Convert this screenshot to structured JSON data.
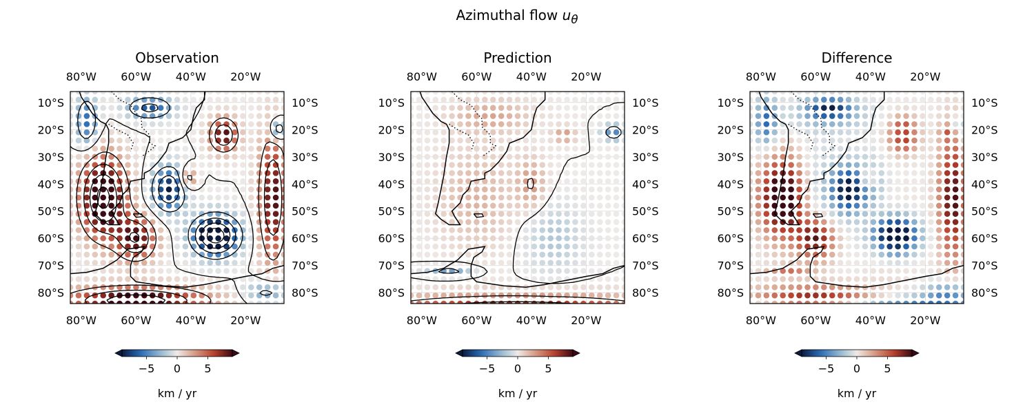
{
  "figure": {
    "title_text": "Azimuthal flow",
    "title_symbol": "u",
    "title_subscript": "θ"
  },
  "chart_data": [
    {
      "type": "heatmap",
      "title": "Observation",
      "map_kind": "observation",
      "x_ticks": [
        "80°W",
        "60°W",
        "40°W",
        "20°W"
      ],
      "x_tick_values": [
        -80,
        -60,
        -40,
        -20
      ],
      "y_ticks": [
        "10°S",
        "20°S",
        "30°S",
        "40°S",
        "50°S",
        "60°S",
        "70°S",
        "80°S"
      ],
      "y_tick_values": [
        -10,
        -20,
        -30,
        -40,
        -50,
        -60,
        -70,
        -80
      ],
      "lon_range": [
        -84,
        -6
      ],
      "lat_range": [
        -6,
        -84
      ],
      "grid": true,
      "coastlines": true,
      "contours": true,
      "colorbar": {
        "ticks": [
          "−5",
          "0",
          "5"
        ],
        "tick_values": [
          -5,
          0,
          5
        ],
        "range": [
          -9,
          9
        ],
        "extend": "both",
        "label": "km / yr",
        "cmap": "balance"
      }
    },
    {
      "type": "heatmap",
      "title": "Prediction",
      "map_kind": "prediction",
      "x_ticks": [
        "80°W",
        "60°W",
        "40°W",
        "20°W"
      ],
      "x_tick_values": [
        -80,
        -60,
        -40,
        -20
      ],
      "y_ticks": [
        "10°S",
        "20°S",
        "30°S",
        "40°S",
        "50°S",
        "60°S",
        "70°S",
        "80°S"
      ],
      "y_tick_values": [
        -10,
        -20,
        -30,
        -40,
        -50,
        -60,
        -70,
        -80
      ],
      "lon_range": [
        -84,
        -6
      ],
      "lat_range": [
        -6,
        -84
      ],
      "grid": true,
      "coastlines": true,
      "contours": true,
      "colorbar": {
        "ticks": [
          "−5",
          "0",
          "5"
        ],
        "tick_values": [
          -5,
          0,
          5
        ],
        "range": [
          -9,
          9
        ],
        "extend": "both",
        "label": "km / yr",
        "cmap": "balance"
      }
    },
    {
      "type": "heatmap",
      "title": "Difference",
      "map_kind": "difference",
      "x_ticks": [
        "80°W",
        "60°W",
        "40°W",
        "20°W"
      ],
      "x_tick_values": [
        -80,
        -60,
        -40,
        -20
      ],
      "y_ticks": [
        "10°S",
        "20°S",
        "30°S",
        "40°S",
        "50°S",
        "60°S",
        "70°S",
        "80°S"
      ],
      "y_tick_values": [
        -10,
        -20,
        -30,
        -40,
        -50,
        -60,
        -70,
        -80
      ],
      "lon_range": [
        -84,
        -6
      ],
      "lat_range": [
        -6,
        -84
      ],
      "grid": true,
      "coastlines": true,
      "contours": false,
      "colorbar": {
        "ticks": [
          "−5",
          "0",
          "5"
        ],
        "tick_values": [
          -5,
          0,
          5
        ],
        "range": [
          -9,
          9
        ],
        "extend": "both",
        "label": "km / yr",
        "cmap": "balance"
      }
    }
  ],
  "colors": {
    "neg_strong": "#0d1b3f",
    "neg": "#2a6bb5",
    "neg_light": "#a7c3d4",
    "zero": "#eeeae8",
    "pos_light": "#dcae9a",
    "pos": "#b8422e",
    "pos_strong": "#3c0a14"
  }
}
